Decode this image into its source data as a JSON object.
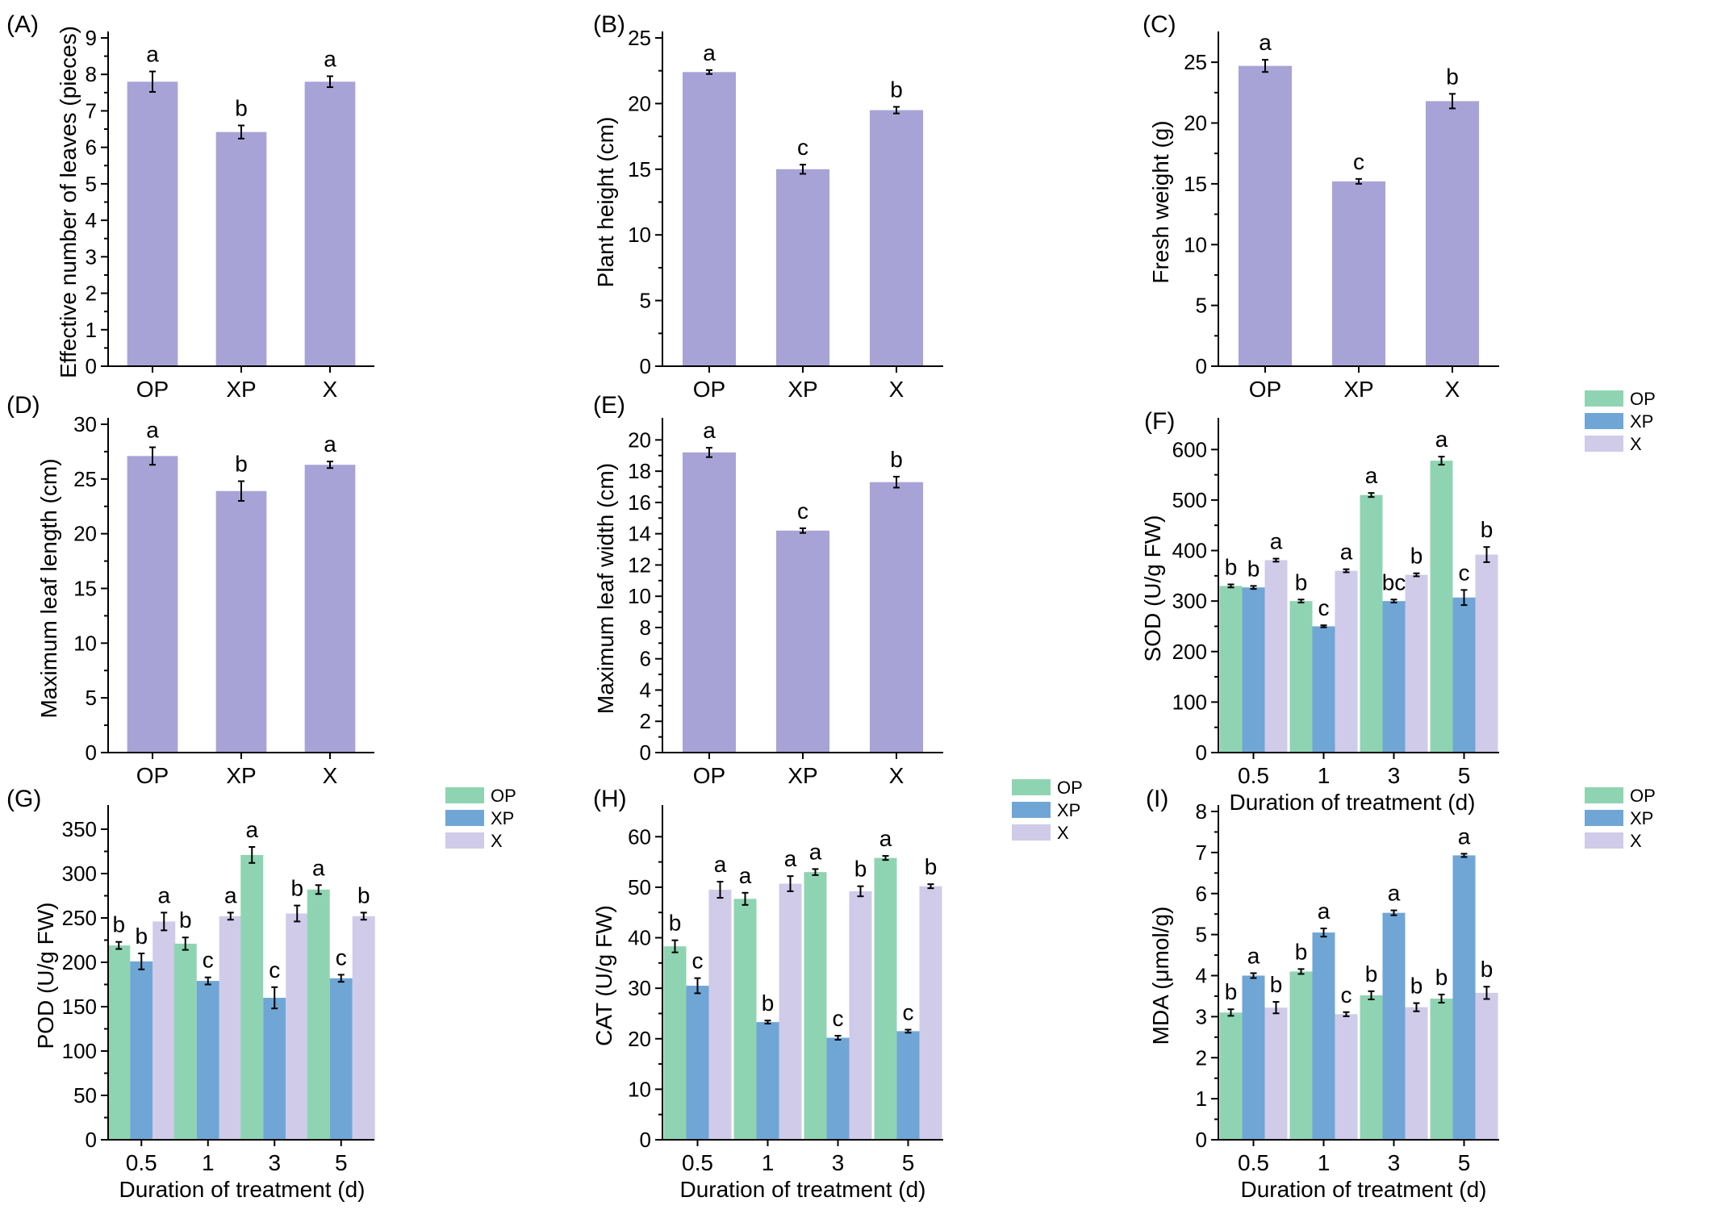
{
  "colors": {
    "single": "#a8a3d6",
    "OP": "#8fd4b2",
    "XP": "#6fa6d6",
    "X": "#cfcbe9",
    "axis": "#000000",
    "error": "#000000"
  },
  "chart_data": [
    {
      "id": "A",
      "panel_label": "(A)",
      "type": "bar",
      "categories": [
        "OP",
        "XP",
        "X"
      ],
      "values": [
        7.8,
        6.42,
        7.8
      ],
      "errors": [
        0.28,
        0.18,
        0.15
      ],
      "letters": [
        "a",
        "b",
        "a"
      ],
      "ylabel": "Effective number of leaves (pieces)",
      "xlabel": "",
      "ylim": [
        0,
        9
      ],
      "yticks": [
        "0",
        "1",
        "2",
        "3",
        "4",
        "5",
        "6",
        "7",
        "8",
        "9"
      ],
      "tick_step": 1
    },
    {
      "id": "B",
      "panel_label": "(B)",
      "type": "bar",
      "categories": [
        "OP",
        "XP",
        "X"
      ],
      "values": [
        22.4,
        15.0,
        19.5
      ],
      "errors": [
        0.15,
        0.35,
        0.25
      ],
      "letters": [
        "a",
        "c",
        "b"
      ],
      "ylabel": "Plant height (cm)",
      "xlabel": "",
      "ylim": [
        0,
        25
      ],
      "yticks": [
        "0",
        "5",
        "10",
        "15",
        "20",
        "25"
      ],
      "tick_step": 5
    },
    {
      "id": "C",
      "panel_label": "(C)",
      "type": "bar",
      "categories": [
        "OP",
        "XP",
        "X"
      ],
      "values": [
        24.7,
        15.2,
        21.8
      ],
      "errors": [
        0.5,
        0.2,
        0.6
      ],
      "letters": [
        "a",
        "c",
        "b"
      ],
      "ylabel": "Fresh weight (g)",
      "xlabel": "",
      "ylim": [
        0,
        27
      ],
      "yticks": [
        "0",
        "5",
        "10",
        "15",
        "20",
        "25"
      ],
      "tick_step": 5
    },
    {
      "id": "D",
      "panel_label": "(D)",
      "type": "bar",
      "categories": [
        "OP",
        "XP",
        "X"
      ],
      "values": [
        27.1,
        23.9,
        26.3
      ],
      "errors": [
        0.8,
        0.9,
        0.3
      ],
      "letters": [
        "a",
        "b",
        "a"
      ],
      "ylabel": "Maximum leaf length (cm)",
      "xlabel": "",
      "ylim": [
        0,
        30
      ],
      "yticks": [
        "0",
        "5",
        "10",
        "15",
        "20",
        "25",
        "30"
      ],
      "tick_step": 5
    },
    {
      "id": "E",
      "panel_label": "(E)",
      "type": "bar",
      "categories": [
        "OP",
        "XP",
        "X"
      ],
      "values": [
        19.2,
        14.2,
        17.3
      ],
      "errors": [
        0.3,
        0.15,
        0.35
      ],
      "letters": [
        "a",
        "c",
        "b"
      ],
      "ylabel": "Maximum leaf width (cm)",
      "xlabel": "",
      "ylim": [
        0,
        21
      ],
      "yticks": [
        "0",
        "2",
        "4",
        "6",
        "8",
        "10",
        "12",
        "14",
        "16",
        "18",
        "20"
      ],
      "tick_step": 2
    },
    {
      "id": "F",
      "panel_label": "(F)",
      "type": "bar",
      "categories": [
        "0.5",
        "1",
        "3",
        "5"
      ],
      "series": [
        {
          "name": "OP",
          "values": [
            330,
            300,
            510,
            578
          ],
          "errors": [
            3,
            3,
            4,
            8
          ],
          "letters": [
            "b",
            "b",
            "a",
            "a"
          ]
        },
        {
          "name": "XP",
          "values": [
            327,
            250,
            300,
            307
          ],
          "errors": [
            3,
            2,
            3,
            15
          ],
          "letters": [
            "b",
            "c",
            "bc",
            "c"
          ]
        },
        {
          "name": "X",
          "values": [
            381,
            360,
            352,
            392
          ],
          "errors": [
            3,
            3,
            3,
            15
          ],
          "letters": [
            "a",
            "a",
            "b",
            "b"
          ]
        }
      ],
      "ylabel": "SOD (U/g FW)",
      "xlabel": "Duration of treatment (d)",
      "ylim": [
        0,
        650
      ],
      "yticks": [
        "0",
        "100",
        "200",
        "300",
        "400",
        "500",
        "600"
      ],
      "tick_step": 100,
      "legend": "top-right"
    },
    {
      "id": "G",
      "panel_label": "(G)",
      "type": "bar",
      "categories": [
        "0.5",
        "1",
        "3",
        "5"
      ],
      "series": [
        {
          "name": "OP",
          "values": [
            219,
            221,
            321,
            282
          ],
          "errors": [
            4,
            7,
            9,
            5
          ],
          "letters": [
            "b",
            "b",
            "a",
            "a"
          ]
        },
        {
          "name": "XP",
          "values": [
            201,
            179,
            160,
            182
          ],
          "errors": [
            9,
            4,
            12,
            4
          ],
          "letters": [
            "b",
            "c",
            "c",
            "c"
          ]
        },
        {
          "name": "X",
          "values": [
            246,
            252,
            255,
            252
          ],
          "errors": [
            10,
            4,
            9,
            4
          ],
          "letters": [
            "a",
            "a",
            "b",
            "b"
          ]
        }
      ],
      "ylabel": "POD (U/g FW)",
      "xlabel": "Duration of treatment (d)",
      "ylim": [
        0,
        370
      ],
      "yticks": [
        "0",
        "50",
        "100",
        "150",
        "200",
        "250",
        "300",
        "350"
      ],
      "tick_step": 50,
      "legend": "top-right"
    },
    {
      "id": "H",
      "panel_label": "(H)",
      "type": "bar",
      "categories": [
        "0.5",
        "1",
        "3",
        "5"
      ],
      "series": [
        {
          "name": "OP",
          "values": [
            38.3,
            47.7,
            53.0,
            55.8
          ],
          "errors": [
            1.2,
            1.2,
            0.6,
            0.4
          ],
          "letters": [
            "b",
            "a",
            "a",
            "a"
          ]
        },
        {
          "name": "XP",
          "values": [
            30.5,
            23.3,
            20.2,
            21.5
          ],
          "errors": [
            1.5,
            0.3,
            0.4,
            0.3
          ],
          "letters": [
            "c",
            "b",
            "c",
            "c"
          ]
        },
        {
          "name": "X",
          "values": [
            49.5,
            50.7,
            49.2,
            50.2
          ],
          "errors": [
            1.6,
            1.5,
            1.0,
            0.4
          ],
          "letters": [
            "a",
            "a",
            "b",
            "b"
          ]
        }
      ],
      "ylabel": "CAT (U/g FW)",
      "xlabel": "Duration of treatment (d)",
      "ylim": [
        0,
        65
      ],
      "yticks": [
        "0",
        "10",
        "20",
        "30",
        "40",
        "50",
        "60"
      ],
      "tick_step": 10,
      "legend": "top-right"
    },
    {
      "id": "I",
      "panel_label": "(I)",
      "type": "bar",
      "categories": [
        "0.5",
        "1",
        "3",
        "5"
      ],
      "series": [
        {
          "name": "OP",
          "values": [
            3.1,
            4.1,
            3.52,
            3.44
          ],
          "errors": [
            0.08,
            0.06,
            0.1,
            0.1
          ],
          "letters": [
            "b",
            "b",
            "b",
            "b"
          ]
        },
        {
          "name": "XP",
          "values": [
            4.0,
            5.05,
            5.53,
            6.93
          ],
          "errors": [
            0.06,
            0.1,
            0.06,
            0.04
          ],
          "letters": [
            "a",
            "a",
            "a",
            "a"
          ]
        },
        {
          "name": "X",
          "values": [
            3.22,
            3.06,
            3.23,
            3.58
          ],
          "errors": [
            0.14,
            0.05,
            0.1,
            0.15
          ],
          "letters": [
            "b",
            "c",
            "b",
            "b"
          ]
        }
      ],
      "ylabel": "MDA (μmol/g)",
      "xlabel": "Duration of treatment (d)",
      "ylim": [
        0,
        8
      ],
      "yticks": [
        "0",
        "1",
        "2",
        "3",
        "4",
        "5",
        "6",
        "7",
        "8"
      ],
      "tick_step": 1,
      "legend": "top-right"
    }
  ]
}
